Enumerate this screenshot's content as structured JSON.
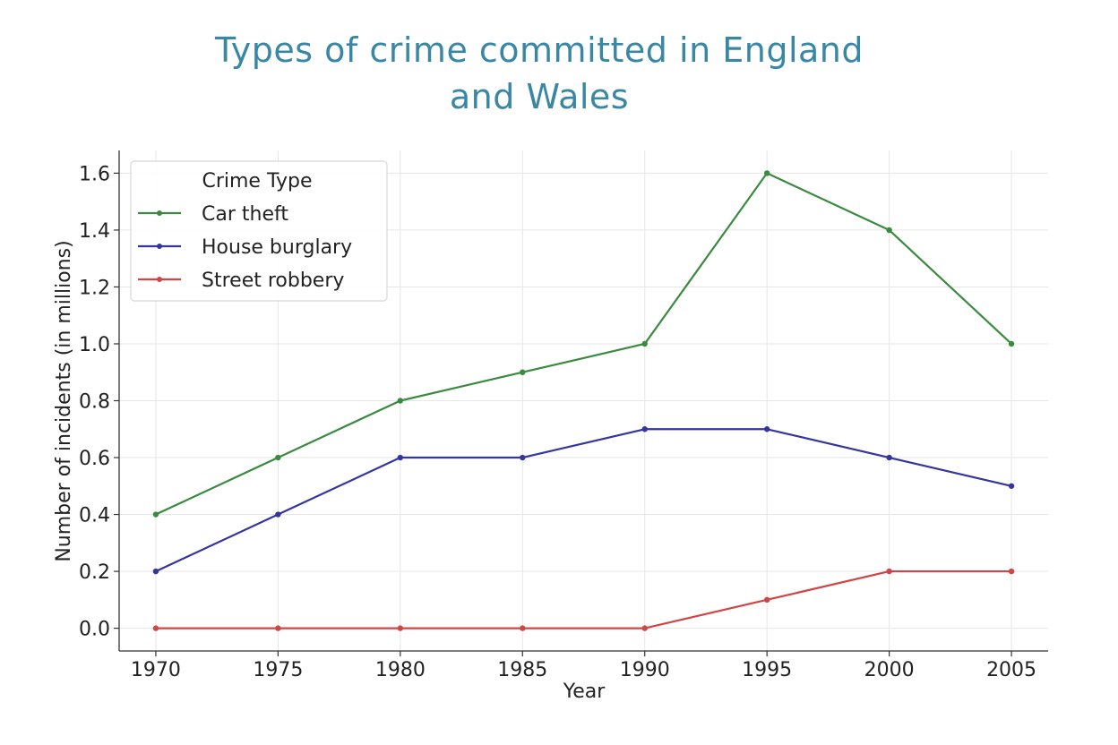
{
  "chart_data": {
    "type": "line",
    "title": "Types of crime committed in England and Wales",
    "xlabel": "Year",
    "ylabel": "Number of incidents (in millions)",
    "x": [
      1970,
      1975,
      1980,
      1985,
      1990,
      1995,
      2000,
      2005
    ],
    "x_ticks": [
      "1970",
      "1975",
      "1980",
      "1985",
      "1990",
      "1995",
      "2000",
      "2005"
    ],
    "y_ticks": [
      "0.0",
      "0.2",
      "0.4",
      "0.6",
      "0.8",
      "1.0",
      "1.2",
      "1.4",
      "1.6"
    ],
    "ylim": [
      -0.08,
      1.68
    ],
    "xlim": [
      1968.5,
      2006.5
    ],
    "grid": true,
    "legend": {
      "title": "Crime Type",
      "placement": "top-left"
    },
    "series": [
      {
        "name": "Car theft",
        "color": "#3a8a3f",
        "values": [
          0.4,
          0.6,
          0.8,
          0.9,
          1.0,
          1.6,
          1.4,
          1.0
        ]
      },
      {
        "name": "House burglary",
        "color": "#3535a0",
        "values": [
          0.2,
          0.4,
          0.6,
          0.6,
          0.7,
          0.7,
          0.6,
          0.5
        ]
      },
      {
        "name": "Street robbery",
        "color": "#d04545",
        "values": [
          0.0,
          0.0,
          0.0,
          0.0,
          0.0,
          0.1,
          0.2,
          0.2
        ]
      }
    ]
  }
}
